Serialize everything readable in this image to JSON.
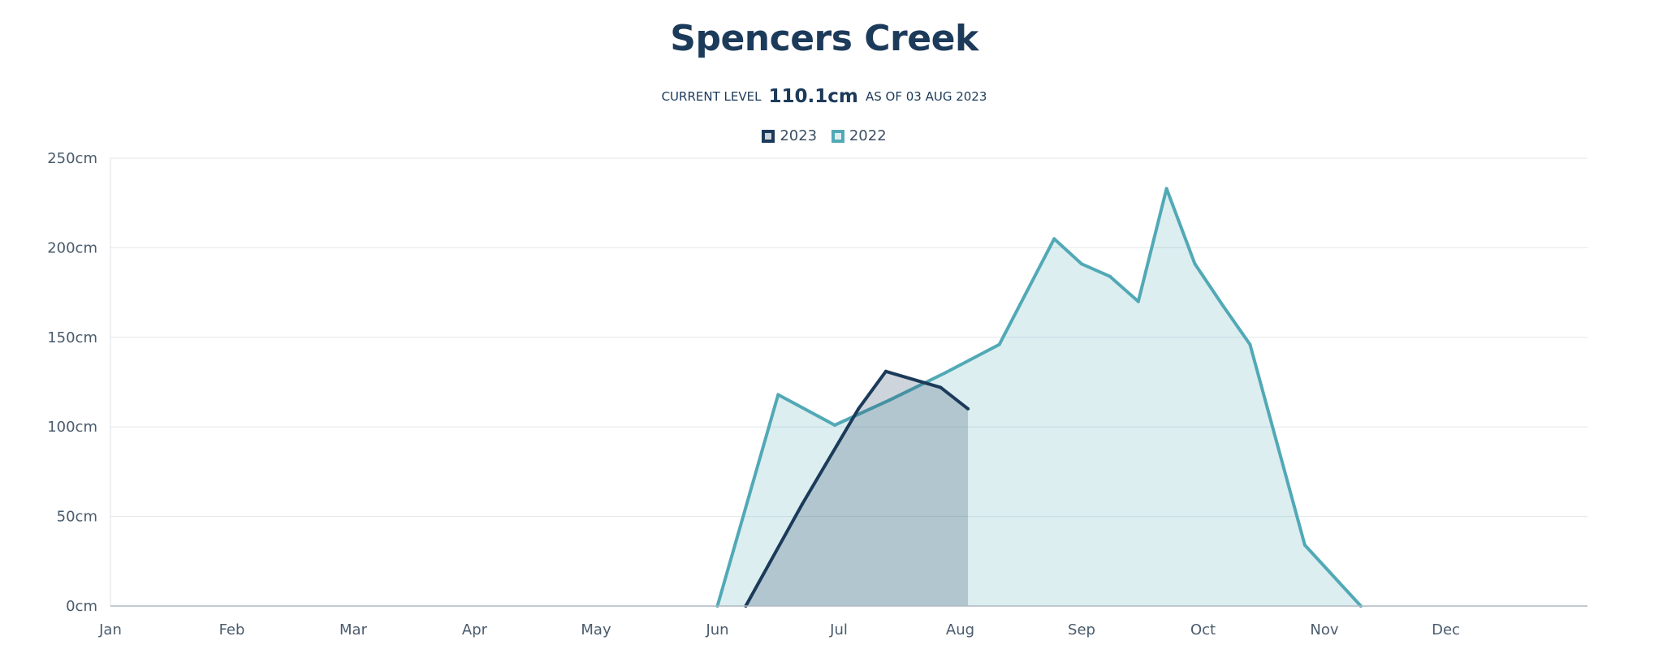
{
  "chart_data": {
    "type": "area",
    "title": "Spencers Creek",
    "current_level": {
      "label": "CURRENT LEVEL",
      "value": "110.1cm",
      "as_of": "AS OF 03 AUG 2023"
    },
    "x_tick_labels": [
      "Jan",
      "Feb",
      "Mar",
      "Apr",
      "May",
      "Jun",
      "Jul",
      "Aug",
      "Sep",
      "Oct",
      "Nov",
      "Dec"
    ],
    "y_tick_labels": [
      "0cm",
      "50cm",
      "100cm",
      "150cm",
      "200cm",
      "250cm"
    ],
    "ylim": [
      0,
      250
    ],
    "grid": true,
    "legend_position": "top-center",
    "series": [
      {
        "name": "2023",
        "color": "#1c3a5a",
        "fill": "rgba(28,58,90,0.22)",
        "points": [
          [
            "2023-06-08",
            0
          ],
          [
            "2023-06-22",
            57
          ],
          [
            "2023-07-06",
            110
          ],
          [
            "2023-07-13",
            131
          ],
          [
            "2023-07-27",
            122
          ],
          [
            "2023-08-03",
            110.1
          ]
        ]
      },
      {
        "name": "2022",
        "color": "#52a9b6",
        "fill": "rgba(82,169,182,0.2)",
        "points": [
          [
            "2022-06-01",
            0
          ],
          [
            "2022-06-16",
            118
          ],
          [
            "2022-06-30",
            101
          ],
          [
            "2022-07-14",
            115
          ],
          [
            "2022-07-28",
            130
          ],
          [
            "2022-08-11",
            146
          ],
          [
            "2022-08-25",
            205
          ],
          [
            "2022-09-01",
            191
          ],
          [
            "2022-09-08",
            184
          ],
          [
            "2022-09-15",
            170
          ],
          [
            "2022-09-22",
            233
          ],
          [
            "2022-09-29",
            191
          ],
          [
            "2022-10-06",
            168
          ],
          [
            "2022-10-13",
            146
          ],
          [
            "2022-10-27",
            34
          ],
          [
            "2022-11-10",
            0
          ]
        ]
      }
    ]
  }
}
